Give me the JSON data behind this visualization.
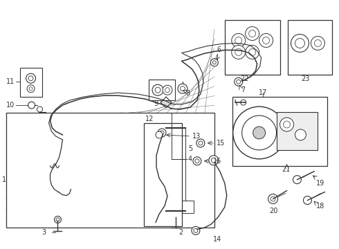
{
  "bg_color": "#ffffff",
  "line_color": "#333333",
  "med_color": "#666666",
  "light_color": "#aaaaaa"
}
